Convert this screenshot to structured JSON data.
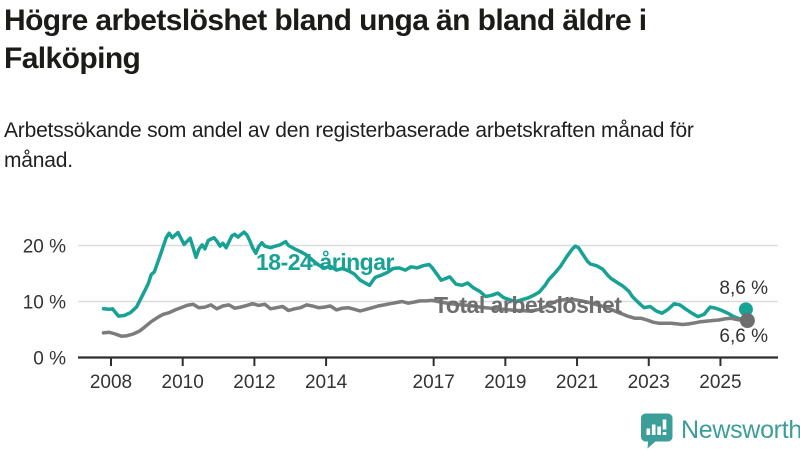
{
  "header": {
    "title": "Högre arbetslöshet bland unga än bland äldre i Falköping",
    "subtitle": "Arbetssökande som andel av den registerbaserade arbetskraften månad för månad."
  },
  "branding": {
    "name": "Newsworthy",
    "logo_icon": "newsworthy-speech-bubble-bar-chart-icon"
  },
  "colors": {
    "young_line": "#18a195",
    "total_line": "#7c7c7c",
    "total_dot": "#6e6e6e",
    "axis": "#2e2e2e",
    "grid": "#dcdcdc",
    "tick_text": "#333333",
    "brand_teal": "#3c9e99"
  },
  "chart_data": {
    "type": "line",
    "title": "Högre arbetslöshet bland unga än bland äldre i Falköping",
    "xlabel": "",
    "ylabel": "Arbetssökande som andel av den registerbaserade arbetskraften",
    "unit": "%",
    "xlim": [
      2007.7,
      2026.6
    ],
    "ylim": [
      0,
      23.6
    ],
    "grid": true,
    "legend_position": "inline-labels",
    "x_ticks": [
      2008,
      2010,
      2012,
      2014,
      2017,
      2019,
      2021,
      2023,
      2025
    ],
    "y_ticks": [
      {
        "value": 0,
        "label": "0 %"
      },
      {
        "value": 10,
        "label": "10 %"
      },
      {
        "value": 20,
        "label": "20 %"
      }
    ],
    "series": [
      {
        "id": "young",
        "label": "18-24-åringar",
        "color": "#18a195",
        "end_value": 8.6,
        "end_label": "8,6 %",
        "points": [
          [
            2007.79,
            8.7
          ],
          [
            2007.95,
            8.6
          ],
          [
            2008.04,
            8.7
          ],
          [
            2008.21,
            7.4
          ],
          [
            2008.37,
            7.5
          ],
          [
            2008.54,
            8.0
          ],
          [
            2008.71,
            9.0
          ],
          [
            2008.87,
            11.0
          ],
          [
            2009.04,
            13.2
          ],
          [
            2009.12,
            14.8
          ],
          [
            2009.21,
            15.3
          ],
          [
            2009.37,
            18.2
          ],
          [
            2009.54,
            21.4
          ],
          [
            2009.62,
            22.2
          ],
          [
            2009.71,
            21.4
          ],
          [
            2009.87,
            22.3
          ],
          [
            2010.04,
            20.2
          ],
          [
            2010.21,
            21.3
          ],
          [
            2010.37,
            17.9
          ],
          [
            2010.45,
            19.3
          ],
          [
            2010.54,
            20.1
          ],
          [
            2010.62,
            19.4
          ],
          [
            2010.71,
            20.9
          ],
          [
            2010.87,
            21.4
          ],
          [
            2010.95,
            20.8
          ],
          [
            2011.04,
            19.9
          ],
          [
            2011.12,
            20.4
          ],
          [
            2011.21,
            19.6
          ],
          [
            2011.37,
            21.7
          ],
          [
            2011.45,
            22.0
          ],
          [
            2011.54,
            21.5
          ],
          [
            2011.71,
            22.4
          ],
          [
            2011.79,
            21.9
          ],
          [
            2011.87,
            20.9
          ],
          [
            2011.95,
            19.6
          ],
          [
            2012.04,
            18.6
          ],
          [
            2012.12,
            19.8
          ],
          [
            2012.21,
            20.5
          ],
          [
            2012.29,
            19.9
          ],
          [
            2012.45,
            19.6
          ],
          [
            2012.54,
            19.8
          ],
          [
            2012.71,
            20.1
          ],
          [
            2012.87,
            20.7
          ],
          [
            2012.95,
            20.0
          ],
          [
            2013.12,
            19.4
          ],
          [
            2013.29,
            18.9
          ],
          [
            2013.45,
            18.3
          ],
          [
            2013.62,
            17.4
          ],
          [
            2013.79,
            16.5
          ],
          [
            2013.95,
            16.0
          ],
          [
            2014.12,
            16.3
          ],
          [
            2014.29,
            15.6
          ],
          [
            2014.45,
            15.9
          ],
          [
            2014.62,
            15.5
          ],
          [
            2014.79,
            14.9
          ],
          [
            2014.95,
            13.8
          ],
          [
            2015.12,
            13.2
          ],
          [
            2015.21,
            12.9
          ],
          [
            2015.37,
            14.3
          ],
          [
            2015.54,
            14.7
          ],
          [
            2015.71,
            15.2
          ],
          [
            2015.87,
            15.9
          ],
          [
            2016.04,
            16.0
          ],
          [
            2016.21,
            15.6
          ],
          [
            2016.37,
            16.2
          ],
          [
            2016.54,
            16.0
          ],
          [
            2016.71,
            16.4
          ],
          [
            2016.87,
            16.6
          ],
          [
            2016.95,
            16.1
          ],
          [
            2017.12,
            14.6
          ],
          [
            2017.21,
            13.8
          ],
          [
            2017.37,
            14.2
          ],
          [
            2017.45,
            14.4
          ],
          [
            2017.62,
            13.1
          ],
          [
            2017.79,
            12.9
          ],
          [
            2017.95,
            13.3
          ],
          [
            2018.12,
            12.4
          ],
          [
            2018.29,
            11.8
          ],
          [
            2018.45,
            10.9
          ],
          [
            2018.62,
            11.1
          ],
          [
            2018.79,
            11.5
          ],
          [
            2018.95,
            10.7
          ],
          [
            2019.12,
            10.3
          ],
          [
            2019.29,
            10.0
          ],
          [
            2019.45,
            10.3
          ],
          [
            2019.62,
            10.6
          ],
          [
            2019.79,
            11.1
          ],
          [
            2019.95,
            11.7
          ],
          [
            2020.12,
            13.0
          ],
          [
            2020.21,
            13.9
          ],
          [
            2020.37,
            15.0
          ],
          [
            2020.54,
            16.3
          ],
          [
            2020.71,
            18.0
          ],
          [
            2020.87,
            19.4
          ],
          [
            2020.95,
            19.9
          ],
          [
            2021.04,
            19.6
          ],
          [
            2021.12,
            18.8
          ],
          [
            2021.29,
            17.2
          ],
          [
            2021.37,
            16.7
          ],
          [
            2021.54,
            16.4
          ],
          [
            2021.71,
            15.8
          ],
          [
            2021.87,
            14.6
          ],
          [
            2021.95,
            14.1
          ],
          [
            2022.12,
            13.4
          ],
          [
            2022.29,
            12.7
          ],
          [
            2022.45,
            11.8
          ],
          [
            2022.54,
            10.9
          ],
          [
            2022.71,
            9.8
          ],
          [
            2022.87,
            8.9
          ],
          [
            2023.04,
            9.1
          ],
          [
            2023.21,
            8.3
          ],
          [
            2023.37,
            7.9
          ],
          [
            2023.54,
            8.6
          ],
          [
            2023.71,
            9.6
          ],
          [
            2023.87,
            9.4
          ],
          [
            2024.04,
            8.6
          ],
          [
            2024.21,
            7.9
          ],
          [
            2024.37,
            7.3
          ],
          [
            2024.54,
            7.7
          ],
          [
            2024.71,
            9.0
          ],
          [
            2024.87,
            8.8
          ],
          [
            2025.04,
            8.4
          ],
          [
            2025.21,
            7.9
          ],
          [
            2025.37,
            7.3
          ],
          [
            2025.54,
            6.9
          ],
          [
            2025.62,
            6.5
          ],
          [
            2025.71,
            8.6
          ]
        ]
      },
      {
        "id": "total",
        "label": "Total arbetslöshet",
        "color": "#7c7c7c",
        "end_value": 6.6,
        "end_label": "6,6 %",
        "points": [
          [
            2007.79,
            4.4
          ],
          [
            2007.95,
            4.5
          ],
          [
            2008.12,
            4.2
          ],
          [
            2008.29,
            3.8
          ],
          [
            2008.45,
            3.9
          ],
          [
            2008.62,
            4.2
          ],
          [
            2008.79,
            4.7
          ],
          [
            2008.95,
            5.5
          ],
          [
            2009.12,
            6.4
          ],
          [
            2009.29,
            7.1
          ],
          [
            2009.45,
            7.7
          ],
          [
            2009.62,
            8.0
          ],
          [
            2009.79,
            8.5
          ],
          [
            2009.95,
            8.9
          ],
          [
            2010.12,
            9.3
          ],
          [
            2010.29,
            9.5
          ],
          [
            2010.45,
            8.9
          ],
          [
            2010.62,
            9.0
          ],
          [
            2010.79,
            9.4
          ],
          [
            2010.95,
            8.7
          ],
          [
            2011.12,
            9.2
          ],
          [
            2011.29,
            9.4
          ],
          [
            2011.45,
            8.8
          ],
          [
            2011.62,
            9.0
          ],
          [
            2011.79,
            9.3
          ],
          [
            2011.95,
            9.6
          ],
          [
            2012.12,
            9.3
          ],
          [
            2012.29,
            9.5
          ],
          [
            2012.45,
            8.7
          ],
          [
            2012.62,
            8.9
          ],
          [
            2012.79,
            9.1
          ],
          [
            2012.95,
            8.4
          ],
          [
            2013.12,
            8.7
          ],
          [
            2013.29,
            8.9
          ],
          [
            2013.45,
            9.4
          ],
          [
            2013.62,
            9.2
          ],
          [
            2013.79,
            8.9
          ],
          [
            2013.95,
            9.0
          ],
          [
            2014.12,
            9.2
          ],
          [
            2014.29,
            8.5
          ],
          [
            2014.45,
            8.8
          ],
          [
            2014.62,
            8.9
          ],
          [
            2014.79,
            8.6
          ],
          [
            2014.95,
            8.3
          ],
          [
            2015.12,
            8.6
          ],
          [
            2015.29,
            8.9
          ],
          [
            2015.45,
            9.2
          ],
          [
            2015.62,
            9.4
          ],
          [
            2015.79,
            9.6
          ],
          [
            2015.95,
            9.8
          ],
          [
            2016.12,
            10.0
          ],
          [
            2016.29,
            9.7
          ],
          [
            2016.45,
            9.9
          ],
          [
            2016.62,
            10.1
          ],
          [
            2016.79,
            10.1
          ],
          [
            2016.95,
            10.2
          ],
          [
            2017.12,
            10.0
          ],
          [
            2017.29,
            9.8
          ],
          [
            2017.45,
            9.6
          ],
          [
            2017.62,
            9.5
          ],
          [
            2017.79,
            9.4
          ],
          [
            2017.95,
            9.3
          ],
          [
            2018.12,
            9.2
          ],
          [
            2018.29,
            9.0
          ],
          [
            2018.45,
            8.9
          ],
          [
            2018.62,
            8.8
          ],
          [
            2018.79,
            8.7
          ],
          [
            2018.95,
            8.6
          ],
          [
            2019.12,
            8.5
          ],
          [
            2019.29,
            8.4
          ],
          [
            2019.45,
            8.4
          ],
          [
            2019.62,
            8.3
          ],
          [
            2019.79,
            8.4
          ],
          [
            2019.95,
            8.6
          ],
          [
            2020.12,
            9.1
          ],
          [
            2020.29,
            9.7
          ],
          [
            2020.45,
            10.1
          ],
          [
            2020.62,
            10.3
          ],
          [
            2020.79,
            10.4
          ],
          [
            2020.95,
            10.3
          ],
          [
            2021.12,
            10.1
          ],
          [
            2021.29,
            9.9
          ],
          [
            2021.45,
            9.6
          ],
          [
            2021.62,
            9.3
          ],
          [
            2021.79,
            9.0
          ],
          [
            2021.95,
            8.6
          ],
          [
            2022.12,
            8.1
          ],
          [
            2022.29,
            7.7
          ],
          [
            2022.45,
            7.3
          ],
          [
            2022.62,
            7.0
          ],
          [
            2022.79,
            7.0
          ],
          [
            2022.95,
            6.7
          ],
          [
            2023.12,
            6.3
          ],
          [
            2023.29,
            6.1
          ],
          [
            2023.45,
            6.1
          ],
          [
            2023.62,
            6.1
          ],
          [
            2023.79,
            6.0
          ],
          [
            2023.95,
            5.9
          ],
          [
            2024.12,
            6.0
          ],
          [
            2024.29,
            6.2
          ],
          [
            2024.45,
            6.4
          ],
          [
            2024.62,
            6.5
          ],
          [
            2024.79,
            6.6
          ],
          [
            2024.95,
            6.7
          ],
          [
            2025.12,
            6.9
          ],
          [
            2025.29,
            7.0
          ],
          [
            2025.45,
            6.8
          ],
          [
            2025.62,
            6.6
          ],
          [
            2025.71,
            6.6
          ]
        ]
      }
    ]
  }
}
